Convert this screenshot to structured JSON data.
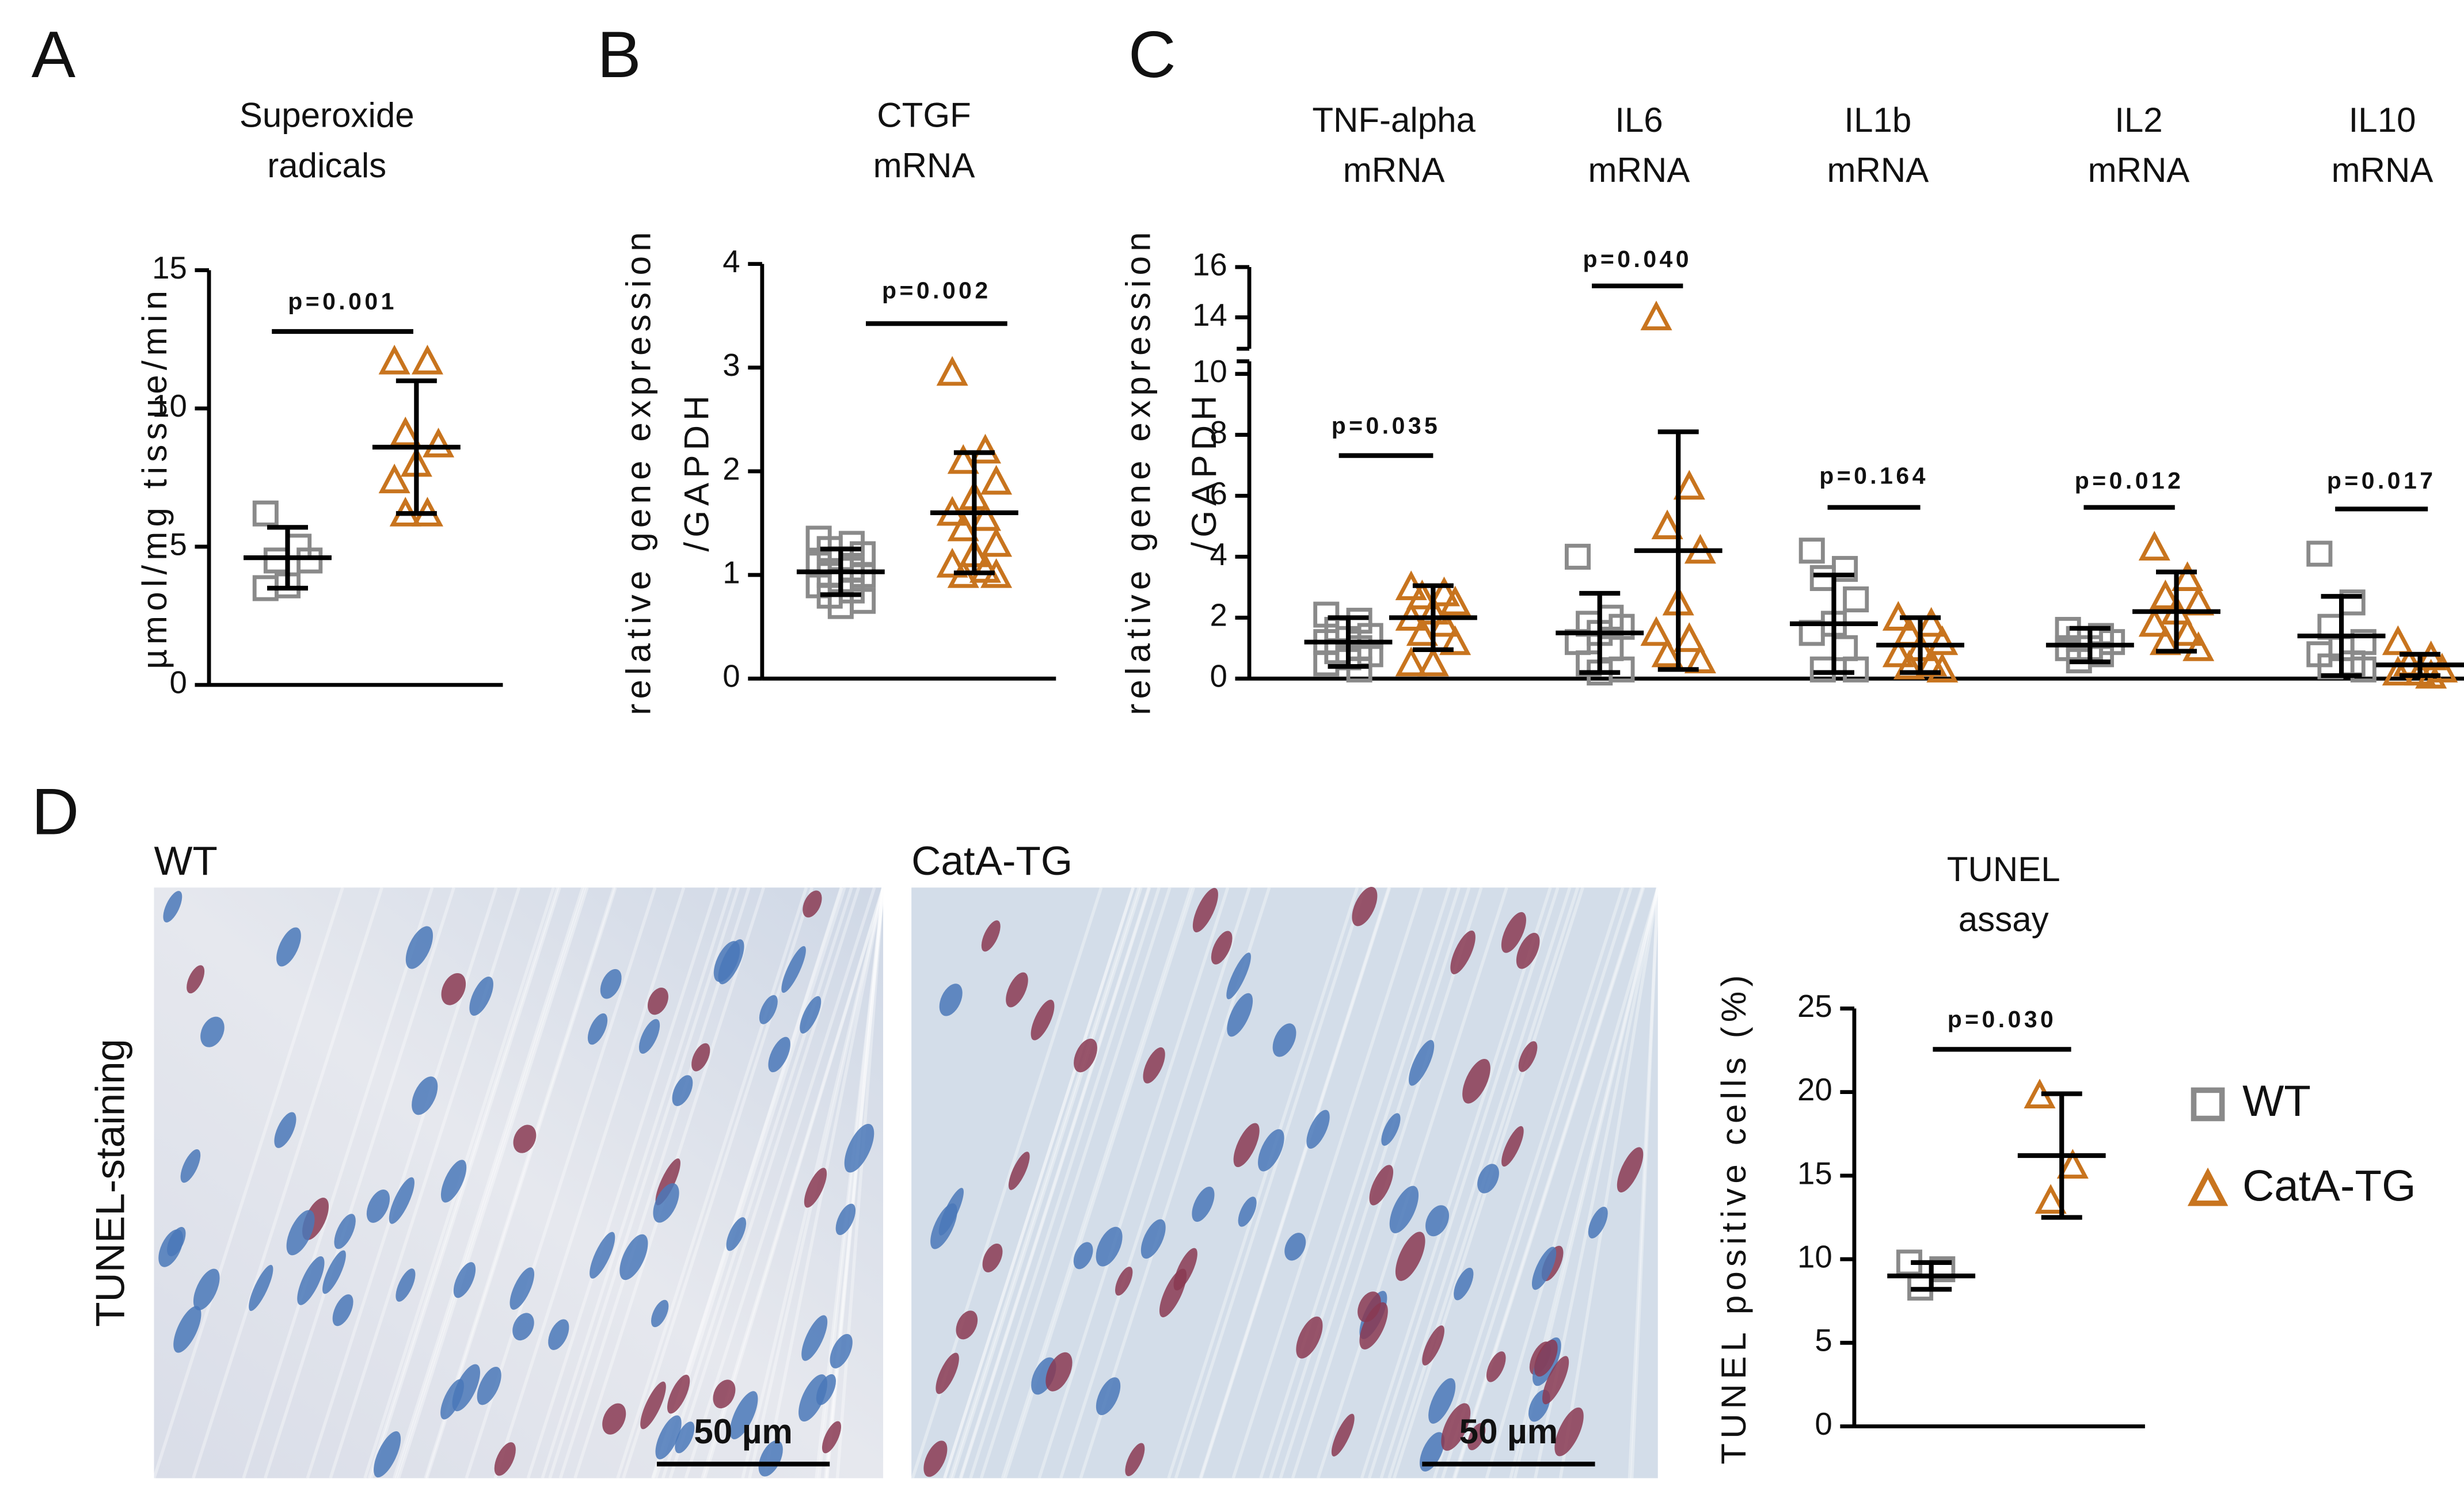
{
  "chart_data": [
    {
      "type": "dotplot",
      "label": "A",
      "title": [
        "Superoxide",
        "radicals"
      ],
      "ylabel": [
        "µmol/mg tissue/min"
      ],
      "ylim": [
        0,
        15
      ],
      "yticks": [
        0,
        5,
        10,
        15
      ],
      "p_value": "p=0.001",
      "series": [
        {
          "color": "#8a8a8a",
          "marker": "square",
          "values": [
            6.2,
            5.0,
            4.5,
            4.5,
            3.6,
            3.5
          ],
          "mean": 4.6,
          "sd": 1.1
        },
        {
          "color": "#c8741e",
          "marker": "triangle",
          "values": [
            11.7,
            11.7,
            9.1,
            8.7,
            8.0,
            7.4,
            6.2,
            6.2
          ],
          "mean": 8.6,
          "sd": 2.4
        }
      ]
    },
    {
      "type": "dotplot",
      "label": "B",
      "title": [
        "CTGF",
        "mRNA"
      ],
      "ylabel": [
        "relative gene expression",
        "/GAPDH"
      ],
      "ylim": [
        0,
        4
      ],
      "yticks": [
        0,
        1,
        2,
        3,
        4
      ],
      "p_value": "p=0.002",
      "series": [
        {
          "color": "#8a8a8a",
          "marker": "square",
          "values": [
            1.35,
            1.3,
            1.25,
            1.2,
            1.15,
            1.1,
            1.05,
            1.0,
            1.0,
            0.95,
            0.9,
            0.85,
            0.8,
            0.75,
            0.7
          ],
          "mean": 1.03,
          "sd": 0.22
        },
        {
          "color": "#c8741e",
          "marker": "triangle",
          "values": [
            2.95,
            2.2,
            2.1,
            1.9,
            1.75,
            1.6,
            1.55,
            1.45,
            1.3,
            1.2,
            1.1,
            1.05,
            1.0,
            1.0
          ],
          "mean": 1.6,
          "sd": 0.58
        }
      ]
    },
    {
      "type": "dotplot",
      "label": "C",
      "ylabel": [
        "relative gene expression",
        "/GAPDH"
      ],
      "ylim": [
        0,
        16
      ],
      "yticks": [
        0,
        2,
        4,
        6,
        8,
        10,
        14,
        16
      ],
      "axis_break": [
        10,
        13
      ],
      "groups": [
        {
          "title": [
            "TNF-alpha",
            "mRNA"
          ],
          "p_value": "p=0.035",
          "series": [
            {
              "color": "#8a8a8a",
              "marker": "square",
              "values": [
                2.1,
                1.9,
                1.6,
                1.4,
                1.3,
                1.2,
                1.0,
                0.9,
                0.8,
                0.7,
                0.5,
                0.3
              ],
              "mean": 1.2,
              "sd": 0.8
            },
            {
              "color": "#c8741e",
              "marker": "triangle",
              "values": [
                3.0,
                2.8,
                2.7,
                2.5,
                2.2,
                2.0,
                1.8,
                1.5,
                1.2,
                0.5,
                0.5
              ],
              "mean": 2.0,
              "sd": 1.05
            }
          ]
        },
        {
          "title": [
            "IL6",
            "mRNA"
          ],
          "p_value": "p=0.040",
          "series": [
            {
              "color": "#8a8a8a",
              "marker": "square",
              "values": [
                4.0,
                2.0,
                1.8,
                1.7,
                1.5,
                1.2,
                1.0,
                0.5,
                0.3,
                0.2
              ],
              "mean": 1.5,
              "sd": 1.3
            },
            {
              "color": "#c8741e",
              "marker": "triangle",
              "values": [
                14,
                6.3,
                5.0,
                4.2,
                2.5,
                1.5,
                1.3,
                0.8,
                0.6
              ],
              "mean": 4.2,
              "sd": 3.9
            }
          ]
        },
        {
          "title": [
            "IL1b",
            "mRNA"
          ],
          "p_value": "p=0.164",
          "series": [
            {
              "color": "#8a8a8a",
              "marker": "square",
              "values": [
                4.2,
                3.6,
                3.3,
                2.6,
                1.8,
                1.5,
                1.0,
                0.3,
                0.3
              ],
              "mean": 1.8,
              "sd": 1.6
            },
            {
              "color": "#c8741e",
              "marker": "triangle",
              "values": [
                2.0,
                1.8,
                1.5,
                1.2,
                1.0,
                0.8,
                0.5,
                0.4,
                0.3
              ],
              "mean": 1.1,
              "sd": 0.9
            }
          ]
        },
        {
          "title": [
            "IL2",
            "mRNA"
          ],
          "p_value": "p=0.012",
          "series": [
            {
              "color": "#8a8a8a",
              "marker": "square",
              "values": [
                1.6,
                1.4,
                1.3,
                1.2,
                1.0,
                1.0,
                0.8,
                0.6
              ],
              "mean": 1.1,
              "sd": 0.55
            },
            {
              "color": "#c8741e",
              "marker": "triangle",
              "values": [
                4.3,
                3.3,
                2.7,
                2.5,
                2.2,
                1.8,
                1.5,
                1.2,
                1.0
              ],
              "mean": 2.2,
              "sd": 1.3
            }
          ]
        },
        {
          "title": [
            "IL10",
            "mRNA"
          ],
          "p_value": "p=0.017",
          "series": [
            {
              "color": "#8a8a8a",
              "marker": "square",
              "values": [
                4.1,
                2.5,
                1.7,
                1.2,
                1.0,
                0.8,
                0.5,
                0.4,
                0.3
              ],
              "mean": 1.4,
              "sd": 1.3
            },
            {
              "color": "#c8741e",
              "marker": "triangle",
              "values": [
                1.2,
                0.7,
                0.5,
                0.3,
                0.2,
                0.2,
                0.1
              ],
              "mean": 0.45,
              "sd": 0.35
            }
          ]
        }
      ]
    },
    {
      "type": "dotplot",
      "title": [
        "TUNEL",
        "assay"
      ],
      "ylabel": [
        "TUNEL positive cells (%)"
      ],
      "ylim": [
        0,
        25
      ],
      "yticks": [
        0,
        5,
        10,
        15,
        20,
        25
      ],
      "p_value": "p=0.030",
      "legend": "right",
      "series": [
        {
          "name": "WT",
          "color": "#8a8a8a",
          "marker": "square",
          "values": [
            9.8,
            9.4,
            8.3
          ],
          "mean": 9.0,
          "sd": 0.8
        },
        {
          "name": "CatA-TG",
          "color": "#c8741e",
          "marker": "triangle",
          "values": [
            19.8,
            15.6,
            13.5
          ],
          "mean": 16.2,
          "sd": 3.7
        }
      ]
    }
  ],
  "images": {
    "panel_label": "D",
    "row_label": "TUNEL-staining",
    "panels": [
      {
        "title": "WT",
        "scale_bar": "50 µm"
      },
      {
        "title": "CatA-TG",
        "scale_bar": "50 µm"
      }
    ]
  }
}
